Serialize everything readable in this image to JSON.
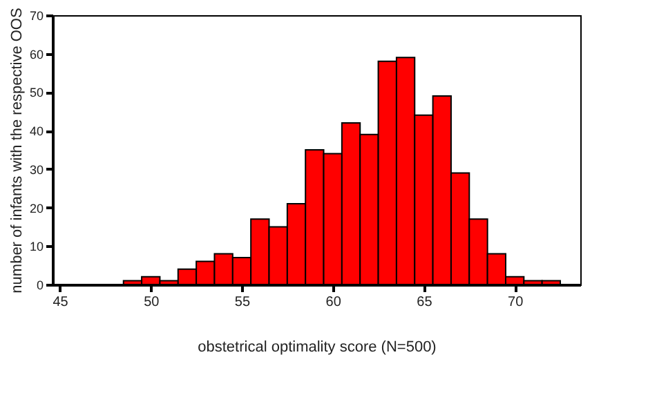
{
  "chart_data": {
    "type": "histogram",
    "xlabel": "obstetrical optimality score (N=500)",
    "ylabel": "number of infants with the respective OOS",
    "bins": [
      48.5,
      49.5,
      50.5,
      51.5,
      52.5,
      53.5,
      54.5,
      55.5,
      56.5,
      57.5,
      58.5,
      59.5,
      60.5,
      61.5,
      62.5,
      63.5,
      64.5,
      65.5,
      66.5,
      67.5,
      68.5,
      69.5,
      70.5,
      71.5,
      72.5
    ],
    "values": [
      1,
      2,
      1,
      4,
      6,
      8,
      7,
      17,
      15,
      21,
      35,
      34,
      42,
      39,
      58,
      59,
      44,
      49,
      29,
      17,
      8,
      2,
      1,
      1
    ],
    "color": "#ff0000",
    "xlim": [
      44.6,
      73.6
    ],
    "xticks": [
      45,
      50,
      55,
      60,
      65,
      70
    ],
    "ylim": [
      0,
      70
    ],
    "yticks": [
      0,
      10,
      20,
      30,
      40,
      50,
      60,
      70
    ],
    "grid": false
  }
}
